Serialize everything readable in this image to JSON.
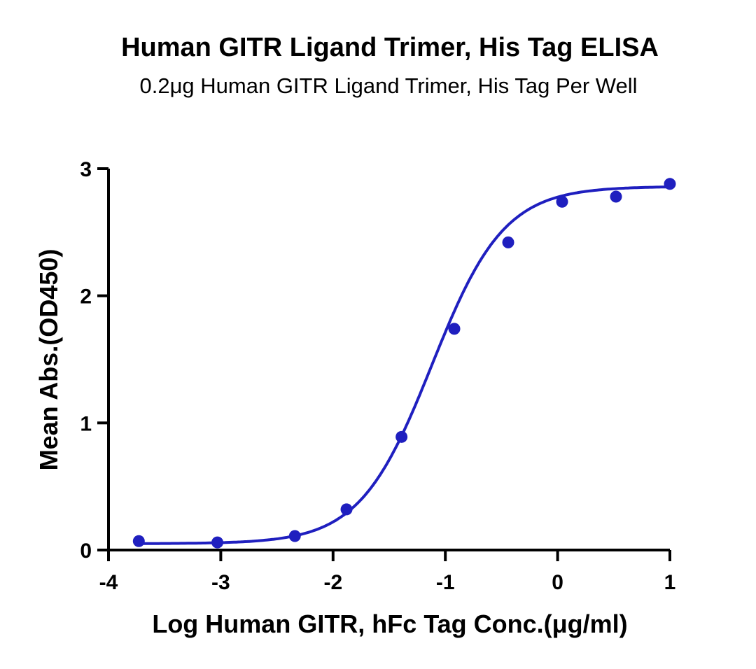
{
  "chart_data": {
    "type": "scatter",
    "title": "Human GITR Ligand Trimer, His Tag ELISA",
    "subtitle": "0.2μg Human GITR Ligand Trimer, His Tag Per Well",
    "xlabel": "Log Human GITR, hFc Tag Conc.(μg/ml)",
    "ylabel": "Mean Abs.(OD450)",
    "xlim": [
      -4,
      1
    ],
    "ylim": [
      0,
      3
    ],
    "xticks": [
      "-4",
      "-3",
      "-2",
      "-1",
      "0",
      "1"
    ],
    "yticks": [
      "0",
      "1",
      "2",
      "3"
    ],
    "grid": false,
    "color": "#1f1fbf",
    "series": [
      {
        "x": [
          -3.73,
          -3.03,
          -2.34,
          -1.88,
          -1.39,
          -0.92,
          -0.44,
          0.04,
          0.52,
          1.0
        ],
        "y": [
          0.07,
          0.06,
          0.11,
          0.32,
          0.89,
          1.74,
          2.42,
          2.74,
          2.78,
          2.88
        ],
        "fit": {
          "model": "4PL sigmoid",
          "bottom": 0.05,
          "top": 2.86,
          "logEC50": -1.12,
          "hill": 1.35
        }
      }
    ]
  }
}
